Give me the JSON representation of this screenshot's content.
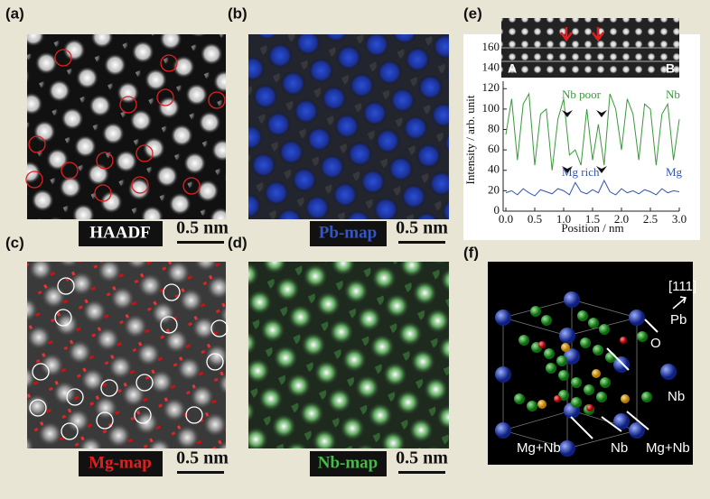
{
  "panels": [
    {
      "label": "(a)",
      "tag": "HAADF",
      "scale": "0.5 nm"
    },
    {
      "label": "(b)",
      "tag": "Pb-map",
      "scale": "0.5 nm"
    },
    {
      "label": "(c)",
      "tag": "Mg-map",
      "scale": "0.5 nm"
    },
    {
      "label": "(d)",
      "tag": "Nb-map",
      "scale": "0.5 nm"
    },
    {
      "label": "(e)"
    },
    {
      "label": "(f)",
      "direction": "[111]",
      "atoms": [
        "Pb",
        "O",
        "Nb",
        "Mg+Nb",
        "Nb",
        "Mg+Nb"
      ]
    }
  ],
  "chart_data": {
    "type": "line",
    "xlabel": "Position / nm",
    "ylabel": "Intensity / arb. unit",
    "x": [
      0,
      0.1,
      0.2,
      0.3,
      0.4,
      0.5,
      0.6,
      0.7,
      0.8,
      0.9,
      1,
      1.1,
      1.2,
      1.3,
      1.4,
      1.5,
      1.6,
      1.7,
      1.8,
      1.9,
      2,
      2.1,
      2.2,
      2.3,
      2.4,
      2.5,
      2.6,
      2.7,
      2.8,
      2.9,
      3
    ],
    "series": [
      {
        "name": "Nb",
        "color": "#3a9a3a",
        "values": [
          75,
          110,
          50,
          105,
          115,
          45,
          95,
          100,
          40,
          90,
          110,
          55,
          60,
          45,
          100,
          50,
          85,
          45,
          115,
          100,
          60,
          110,
          95,
          50,
          105,
          100,
          45,
          95,
          105,
          50,
          90
        ]
      },
      {
        "name": "Mg",
        "color": "#3355aa",
        "values": [
          18,
          20,
          16,
          22,
          18,
          15,
          21,
          19,
          17,
          22,
          20,
          16,
          28,
          19,
          17,
          21,
          18,
          30,
          19,
          16,
          22,
          18,
          20,
          17,
          21,
          19,
          16,
          22,
          18,
          20,
          19
        ]
      }
    ],
    "annotations": [
      "Nb poor",
      "Mg rich"
    ],
    "inset_labels": [
      "A",
      "B"
    ],
    "xlim": [
      0,
      3
    ],
    "xticks": [
      {
        "value": 0,
        "label": "0.0"
      },
      0.5,
      {
        "value": 1,
        "label": "1.0"
      },
      1.5,
      {
        "value": 2,
        "label": "2.0"
      },
      2.5,
      {
        "value": 3,
        "label": "3.0"
      }
    ],
    "ylim": [
      0,
      160
    ],
    "yticks": [
      0,
      20,
      40,
      60,
      80,
      100,
      120,
      140,
      160
    ]
  }
}
